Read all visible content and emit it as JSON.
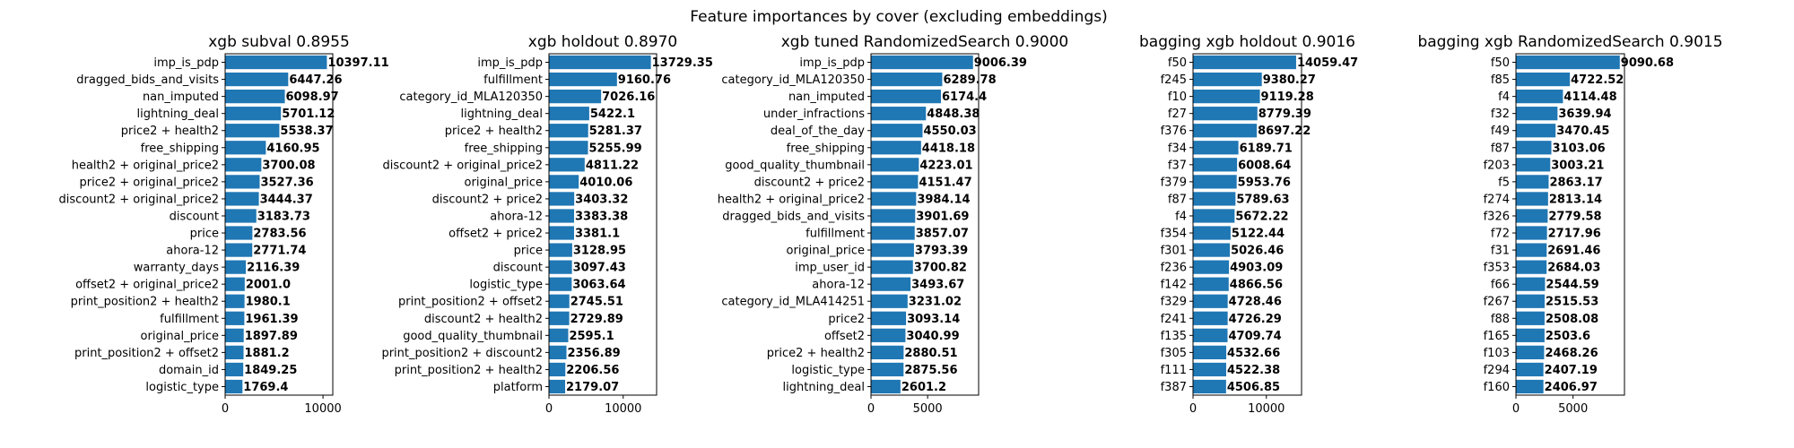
{
  "figure_title": "Feature importances by cover (excluding embeddings)",
  "colors": {
    "bar": "#1f77b4",
    "axis": "#000000",
    "text": "#000000"
  },
  "chart_data": [
    {
      "type": "bar",
      "orientation": "horizontal",
      "title": "xgb subval 0.8955",
      "xlabel": "",
      "ylabel": "",
      "xlim": [
        0,
        11000
      ],
      "xticks": [
        0,
        10000
      ],
      "grid": false,
      "categories": [
        "imp_is_pdp",
        "dragged_bids_and_visits",
        "nan_imputed",
        "lightning_deal",
        "price2 + health2",
        "free_shipping",
        "health2 + original_price2",
        "price2 + original_price2",
        "discount2 + original_price2",
        "discount",
        "price",
        "ahora-12",
        "warranty_days",
        "offset2 + original_price2",
        "print_position2 + health2",
        "fulfillment",
        "original_price",
        "print_position2 + offset2",
        "domain_id",
        "logistic_type"
      ],
      "values": [
        10397.11,
        6447.26,
        6098.97,
        5701.12,
        5538.37,
        4160.95,
        3700.08,
        3527.36,
        3444.37,
        3183.73,
        2783.56,
        2771.74,
        2116.39,
        2001.0,
        1980.1,
        1961.39,
        1897.89,
        1881.2,
        1849.25,
        1769.4
      ],
      "data_labels": [
        "10397.11",
        "6447.26",
        "6098.97",
        "5701.12",
        "5538.37",
        "4160.95",
        "3700.08",
        "3527.36",
        "3444.37",
        "3183.73",
        "2783.56",
        "2771.74",
        "2116.39",
        "2001.0",
        "1980.1",
        "1961.39",
        "1897.89",
        "1881.2",
        "1849.25",
        "1769.4"
      ]
    },
    {
      "type": "bar",
      "orientation": "horizontal",
      "title": "xgb holdout 0.8970",
      "xlabel": "",
      "ylabel": "",
      "xlim": [
        0,
        14500
      ],
      "xticks": [
        0,
        10000
      ],
      "grid": false,
      "categories": [
        "imp_is_pdp",
        "fulfillment",
        "category_id_MLA120350",
        "lightning_deal",
        "price2 + health2",
        "free_shipping",
        "discount2 + original_price2",
        "original_price",
        "discount2 + price2",
        "ahora-12",
        "offset2 + price2",
        "price",
        "discount",
        "logistic_type",
        "print_position2 + offset2",
        "discount2 + health2",
        "good_quality_thumbnail",
        "print_position2 + discount2",
        "print_position2 + health2",
        "platform"
      ],
      "values": [
        13729.35,
        9160.76,
        7026.16,
        5422.1,
        5281.37,
        5255.99,
        4811.22,
        4010.06,
        3403.32,
        3383.38,
        3381.1,
        3128.95,
        3097.43,
        3063.64,
        2745.51,
        2729.89,
        2595.1,
        2356.89,
        2206.56,
        2179.07
      ],
      "data_labels": [
        "13729.35",
        "9160.76",
        "7026.16",
        "5422.1",
        "5281.37",
        "5255.99",
        "4811.22",
        "4010.06",
        "3403.32",
        "3383.38",
        "3381.1",
        "3128.95",
        "3097.43",
        "3063.64",
        "2745.51",
        "2729.89",
        "2595.1",
        "2356.89",
        "2206.56",
        "2179.07"
      ]
    },
    {
      "type": "bar",
      "orientation": "horizontal",
      "title": "xgb tuned RandomizedSearch 0.9000",
      "xlabel": "",
      "ylabel": "",
      "xlim": [
        0,
        9500
      ],
      "xticks": [
        0,
        5000
      ],
      "grid": false,
      "categories": [
        "imp_is_pdp",
        "category_id_MLA120350",
        "nan_imputed",
        "under_infractions",
        "deal_of_the_day",
        "free_shipping",
        "good_quality_thumbnail",
        "discount2 + price2",
        "health2 + original_price2",
        "dragged_bids_and_visits",
        "fulfillment",
        "original_price",
        "imp_user_id",
        "ahora-12",
        "category_id_MLA414251",
        "price2",
        "offset2",
        "price2 + health2",
        "logistic_type",
        "lightning_deal"
      ],
      "values": [
        9006.39,
        6289.78,
        6174.4,
        4848.38,
        4550.03,
        4418.18,
        4223.01,
        4151.47,
        3984.14,
        3901.69,
        3857.07,
        3793.39,
        3700.82,
        3493.67,
        3231.02,
        3093.14,
        3040.99,
        2880.51,
        2875.56,
        2601.2
      ],
      "data_labels": [
        "9006.39",
        "6289.78",
        "6174.4",
        "4848.38",
        "4550.03",
        "4418.18",
        "4223.01",
        "4151.47",
        "3984.14",
        "3901.69",
        "3857.07",
        "3793.39",
        "3700.82",
        "3493.67",
        "3231.02",
        "3093.14",
        "3040.99",
        "2880.51",
        "2875.56",
        "2601.2"
      ]
    },
    {
      "type": "bar",
      "orientation": "horizontal",
      "title": "bagging xgb holdout 0.9016",
      "xlabel": "",
      "ylabel": "",
      "xlim": [
        0,
        14800
      ],
      "xticks": [
        0,
        10000
      ],
      "grid": false,
      "categories": [
        "f50",
        "f245",
        "f10",
        "f27",
        "f376",
        "f34",
        "f37",
        "f379",
        "f87",
        "f4",
        "f354",
        "f301",
        "f236",
        "f142",
        "f329",
        "f241",
        "f135",
        "f305",
        "f111",
        "f387"
      ],
      "values": [
        14059.47,
        9380.27,
        9119.28,
        8779.39,
        8697.22,
        6189.71,
        6008.64,
        5953.76,
        5789.63,
        5672.22,
        5122.44,
        5026.46,
        4903.09,
        4866.56,
        4728.46,
        4726.29,
        4709.74,
        4532.66,
        4522.38,
        4506.85
      ],
      "data_labels": [
        "14059.47",
        "9380.27",
        "9119.28",
        "8779.39",
        "8697.22",
        "6189.71",
        "6008.64",
        "5953.76",
        "5789.63",
        "5672.22",
        "5122.44",
        "5026.46",
        "4903.09",
        "4866.56",
        "4728.46",
        "4726.29",
        "4709.74",
        "4532.66",
        "4522.38",
        "4506.85"
      ]
    },
    {
      "type": "bar",
      "orientation": "horizontal",
      "title": "bagging xgb RandomizedSearch 0.9015",
      "xlabel": "",
      "ylabel": "",
      "xlim": [
        0,
        9500
      ],
      "xticks": [
        0,
        5000
      ],
      "grid": false,
      "categories": [
        "f50",
        "f85",
        "f4",
        "f32",
        "f49",
        "f87",
        "f203",
        "f5",
        "f274",
        "f326",
        "f72",
        "f31",
        "f353",
        "f66",
        "f267",
        "f88",
        "f165",
        "f103",
        "f294",
        "f160"
      ],
      "values": [
        9090.68,
        4722.52,
        4114.48,
        3639.94,
        3470.45,
        3103.06,
        3003.21,
        2863.17,
        2813.14,
        2779.58,
        2717.96,
        2691.46,
        2684.03,
        2544.59,
        2515.53,
        2508.08,
        2503.6,
        2468.26,
        2407.19,
        2406.97
      ],
      "data_labels": [
        "9090.68",
        "4722.52",
        "4114.48",
        "3639.94",
        "3470.45",
        "3103.06",
        "3003.21",
        "2863.17",
        "2813.14",
        "2779.58",
        "2717.96",
        "2691.46",
        "2684.03",
        "2544.59",
        "2515.53",
        "2508.08",
        "2503.6",
        "2468.26",
        "2407.19",
        "2406.97"
      ]
    }
  ]
}
